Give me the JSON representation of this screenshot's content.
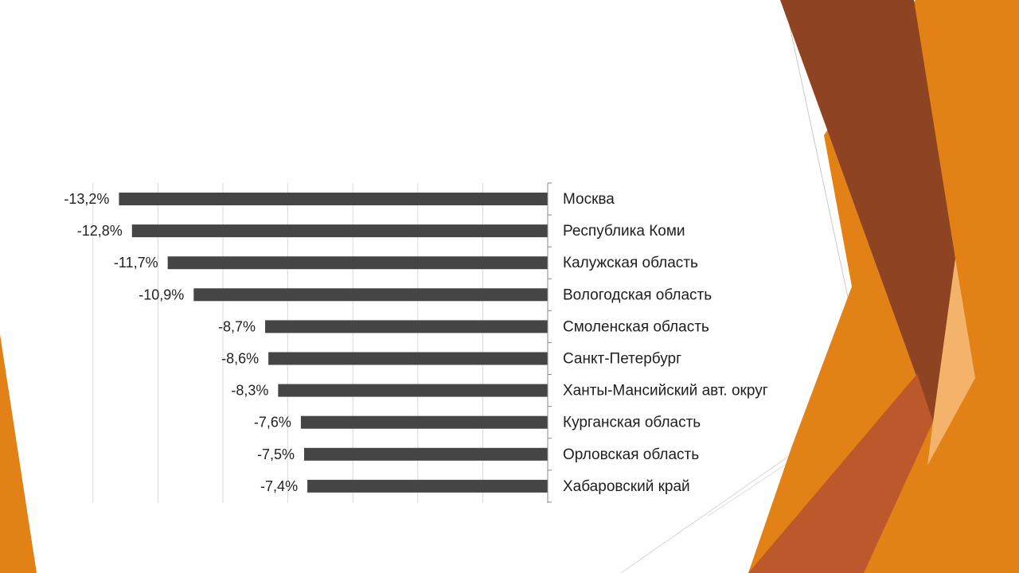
{
  "theme": {
    "orange": "#E28115",
    "brown": "#8E4322",
    "rust": "#BD582C",
    "peach": "#F3B36B",
    "bar_color": "#454545",
    "grid_color": "#d9d9d9"
  },
  "chart_data": {
    "type": "bar",
    "orientation": "horizontal",
    "title": "",
    "xlabel": "",
    "ylabel": "",
    "categories": [
      "Москва",
      "Республика Коми",
      "Калужская область",
      "Вологодская область",
      "Смоленская область",
      "Санкт-Петербург",
      "Ханты-Мансийский авт. округ",
      "Курганская область",
      "Орловская область",
      "Хабаровский край"
    ],
    "values": [
      -13.2,
      -12.8,
      -11.7,
      -10.9,
      -8.7,
      -8.6,
      -8.3,
      -7.6,
      -7.5,
      -7.4
    ],
    "value_labels": [
      "-13,2%",
      "-12,8%",
      "-11,7%",
      "-10,9%",
      "-8,7%",
      "-8,6%",
      "-8,3%",
      "-7,6%",
      "-7,5%",
      "-7,4%"
    ],
    "xlim": [
      -14,
      0
    ],
    "grid": true,
    "legend": "none"
  }
}
